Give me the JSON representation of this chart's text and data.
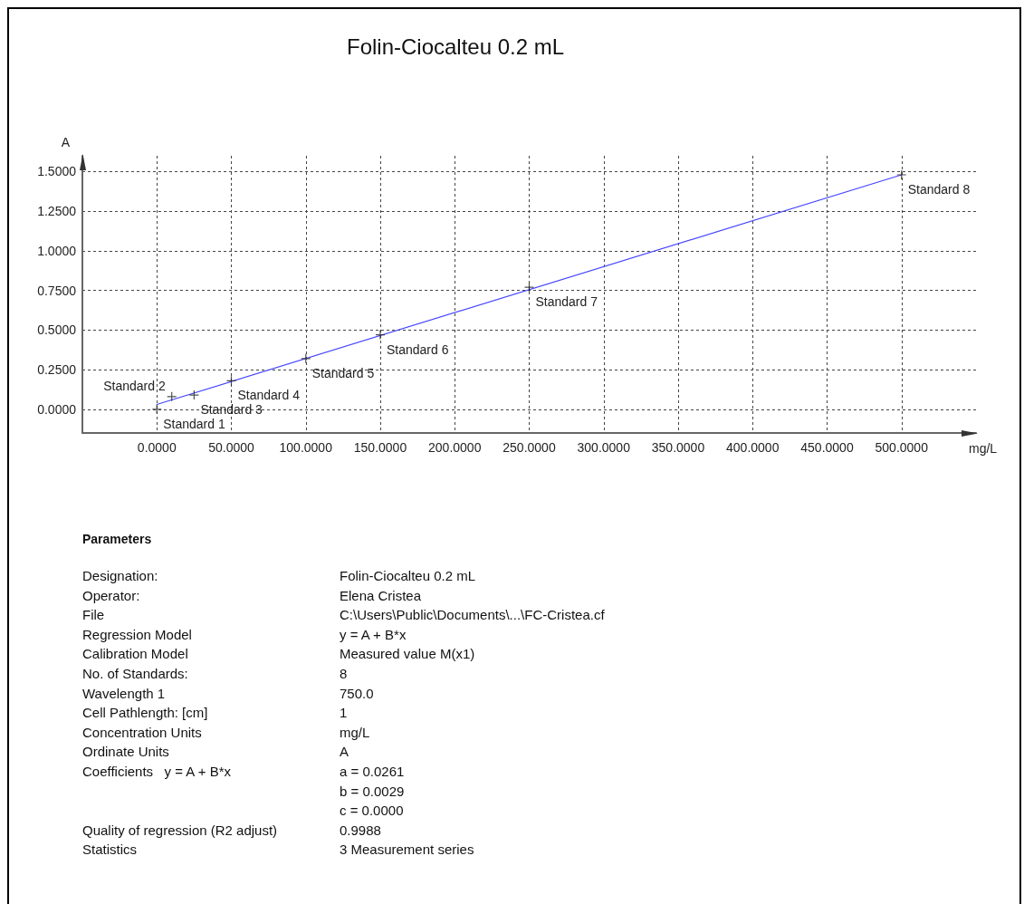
{
  "chart_data": {
    "type": "scatter",
    "title": "Folin-Ciocalteu 0.2 mL",
    "xlabel": "mg/L",
    "ylabel": "A",
    "x": [
      0,
      10,
      25,
      50,
      100,
      150,
      250,
      500
    ],
    "series": [
      {
        "color": "#222222",
        "marker": "cross",
        "values": [
          0.0,
          0.08,
          0.09,
          0.18,
          0.32,
          0.47,
          0.77,
          1.48
        ]
      },
      {
        "type": "line",
        "x": [
          0,
          500
        ],
        "color": "#4646ff",
        "marker": "none",
        "line_style": "solid",
        "values": [
          0.03,
          1.48
        ]
      }
    ],
    "xlim": [
      -50,
      550
    ],
    "ylim": [
      -0.15,
      1.6
    ],
    "xticks": [
      {
        "value": 0,
        "label": "0.0000"
      },
      {
        "value": 50,
        "label": "50.0000"
      },
      {
        "value": 100,
        "label": "100.0000"
      },
      {
        "value": 150,
        "label": "150.0000"
      },
      {
        "value": 200,
        "label": "200.0000"
      },
      {
        "value": 250,
        "label": "250.0000"
      },
      {
        "value": 300,
        "label": "300.0000"
      },
      {
        "value": 350,
        "label": "350.0000"
      },
      {
        "value": 400,
        "label": "400.0000"
      },
      {
        "value": 450,
        "label": "450.0000"
      },
      {
        "value": 500,
        "label": "500.0000"
      }
    ],
    "yticks": [
      {
        "value": 0,
        "label": "0.0000"
      },
      {
        "value": 0.25,
        "label": "0.2500"
      },
      {
        "value": 0.5,
        "label": "0.5000"
      },
      {
        "value": 0.75,
        "label": "0.7500"
      },
      {
        "value": 1,
        "label": "1.0000"
      },
      {
        "value": 1.25,
        "label": "1.2500"
      },
      {
        "value": 1.5,
        "label": "1.5000"
      }
    ],
    "grid": true,
    "annotations": [
      {
        "text": "Standard 1",
        "x": 0,
        "y": 0.0
      },
      {
        "text": "Standard 2",
        "x": 10,
        "y": 0.08
      },
      {
        "text": "Standard 3",
        "x": 25,
        "y": 0.09
      },
      {
        "text": "Standard 4",
        "x": 50,
        "y": 0.18
      },
      {
        "text": "Standard 5",
        "x": 100,
        "y": 0.32
      },
      {
        "text": "Standard 6",
        "x": 150,
        "y": 0.47
      },
      {
        "text": "Standard 7",
        "x": 250,
        "y": 0.77
      },
      {
        "text": "Standard 8",
        "x": 500,
        "y": 1.48
      },
      "Parameters",
      "Designation:",
      "Folin-Ciocalteu 0.2 mL",
      "Operator:",
      "Elena Cristea",
      "File",
      "C:\\Users\\Public\\Documents\\...\\FC-Cristea.cf",
      "Regression Model",
      "y = A + B*x",
      "Calibration Model",
      "Measured value M(x1)",
      "No. of Standards:",
      "8",
      "Wavelength 1",
      "750.0",
      "Cell Pathlength: [cm]",
      "1",
      "Concentration Units",
      "mg/L",
      "Ordinate Units",
      "A",
      "Coefficients   y = A + B*x",
      "a = 0.0261\nb = 0.0029\nc = 0.0000",
      "Quality of regression (R2 adjust)",
      "0.9988",
      "Statistics",
      "3 Measurement series"
    ]
  }
}
